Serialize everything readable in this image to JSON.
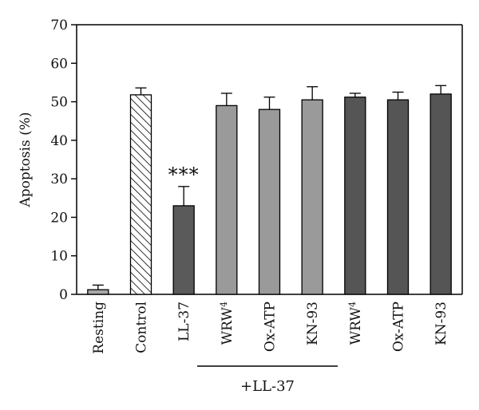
{
  "chart_data": {
    "type": "bar",
    "ylabel": "Apoptosis (%)",
    "ylim": [
      0,
      70
    ],
    "yticks": [
      0,
      10,
      20,
      30,
      40,
      50,
      60,
      70
    ],
    "categories": [
      "Resting",
      "Control",
      "LL-37",
      "WRW",
      "Ox-ATP",
      "KN-93",
      "WRW",
      "Ox-ATP",
      "KN-93"
    ],
    "category_superscripts": [
      "",
      "",
      "",
      "4",
      "",
      "",
      "4",
      "",
      ""
    ],
    "values": [
      1.2,
      51.8,
      23,
      49,
      48,
      50.5,
      51.2,
      50.5,
      52
    ],
    "errors": [
      1.2,
      1.8,
      5,
      3.2,
      3.2,
      3.4,
      1,
      2,
      2.2
    ],
    "bar_colors": [
      "#a8a8a8",
      "#ffffff",
      "#5a5a5a",
      "#9a9a9a",
      "#9a9a9a",
      "#9a9a9a",
      "#555555",
      "#555555",
      "#555555"
    ],
    "bar_patterns": [
      "solid",
      "hatch",
      "solid",
      "solid",
      "solid",
      "solid",
      "solid",
      "solid",
      "solid"
    ],
    "annotations": [
      {
        "category_index": 2,
        "text": "***"
      }
    ],
    "group_label": {
      "text": "+LL-37",
      "from_index": 3,
      "to_index": 5
    }
  }
}
